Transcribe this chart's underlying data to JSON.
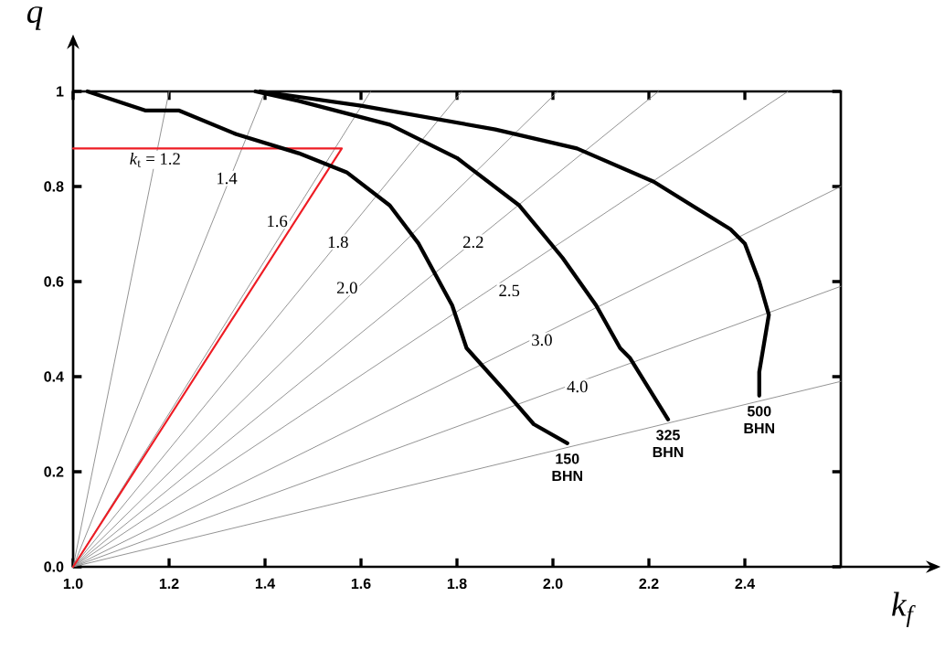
{
  "chart_data": {
    "type": "line",
    "xlabel": "k$_{f}$",
    "ylabel": "q",
    "xlim": [
      1.0,
      2.6
    ],
    "ylim": [
      0.0,
      1.0
    ],
    "xticks": [
      {
        "value": 1,
        "label": "1.0"
      },
      1.2,
      1.4,
      1.6,
      1.8,
      {
        "value": 2,
        "label": "2.0"
      },
      2.2,
      2.4
    ],
    "yticks": [
      {
        "value": 0,
        "label": "0.0"
      },
      0.2,
      0.4,
      0.6,
      0.8,
      {
        "value": 1,
        "label": "1"
      }
    ],
    "marker": "none",
    "line_style": "solid",
    "series": [
      {
        "color": "#8c8c8c",
        "x": [
          1.0,
          1.2
        ],
        "values": [
          0.0,
          1.0
        ]
      },
      {
        "color": "#8c8c8c",
        "x": [
          1.0,
          1.4
        ],
        "values": [
          0.0,
          1.0
        ]
      },
      {
        "color": "#8c8c8c",
        "x": [
          1.0,
          1.62
        ],
        "values": [
          0.0,
          1.0
        ]
      },
      {
        "color": "#8c8c8c",
        "x": [
          1.0,
          1.81
        ],
        "values": [
          0.0,
          1.0
        ]
      },
      {
        "color": "#8c8c8c",
        "x": [
          1.0,
          2.01
        ],
        "values": [
          0.0,
          1.0
        ]
      },
      {
        "color": "#8c8c8c",
        "x": [
          1.0,
          2.22
        ],
        "values": [
          0.0,
          1.0
        ]
      },
      {
        "color": "#8c8c8c",
        "x": [
          1.0,
          2.49
        ],
        "values": [
          0.0,
          1.0
        ]
      },
      {
        "color": "#8c8c8c",
        "x": [
          1.0,
          2.6
        ],
        "values": [
          0.0,
          0.8
        ]
      },
      {
        "color": "#8c8c8c",
        "x": [
          1.0,
          2.6
        ],
        "values": [
          0.0,
          0.59
        ]
      },
      {
        "color": "#8c8c8c",
        "x": [
          1.0,
          2.6
        ],
        "values": [
          0.0,
          0.39
        ]
      },
      {
        "color": "#ee1c24",
        "x": [
          1.0,
          1.56,
          1.0
        ],
        "values": [
          0.88,
          0.88,
          0.0
        ]
      },
      {
        "name": "150 BHN",
        "color": "#000000",
        "x": [
          1.03,
          1.15,
          1.22,
          1.34,
          1.47,
          1.57,
          1.66,
          1.72,
          1.79,
          1.82,
          1.9,
          1.96,
          2.03
        ],
        "values": [
          1.0,
          0.96,
          0.96,
          0.91,
          0.87,
          0.83,
          0.76,
          0.68,
          0.55,
          0.46,
          0.37,
          0.3,
          0.26
        ]
      },
      {
        "name": "325 BHN",
        "color": "#000000",
        "x": [
          1.38,
          1.47,
          1.66,
          1.8,
          1.93,
          2.02,
          2.09,
          2.14,
          2.16,
          2.24
        ],
        "values": [
          1.0,
          0.98,
          0.93,
          0.86,
          0.76,
          0.65,
          0.55,
          0.46,
          0.44,
          0.31
        ]
      },
      {
        "name": "500 BHN",
        "color": "#000000",
        "x": [
          1.39,
          1.6,
          1.88,
          2.05,
          2.21,
          2.37,
          2.4,
          2.43,
          2.45,
          2.43,
          2.43
        ],
        "values": [
          1.0,
          0.97,
          0.92,
          0.88,
          0.81,
          0.71,
          0.68,
          0.6,
          0.53,
          0.41,
          0.36
        ]
      }
    ],
    "annotations": [
      {
        "text": "*k*$_{t}$ = 1.2",
        "x": 1.171,
        "y": 0.856
      },
      {
        "text": "1.4",
        "x": 1.32,
        "y": 0.817
      },
      {
        "text": "1.6",
        "x": 1.425,
        "y": 0.727
      },
      {
        "text": "1.8",
        "x": 1.552,
        "y": 0.683
      },
      {
        "text": "2.0",
        "x": 1.571,
        "y": 0.587
      },
      {
        "text": "2.2",
        "x": 1.834,
        "y": 0.683
      },
      {
        "text": "2.5",
        "x": 1.909,
        "y": 0.581
      },
      {
        "text": "3.0",
        "x": 1.977,
        "y": 0.477
      },
      {
        "text": "4.0",
        "x": 2.051,
        "y": 0.379
      }
    ]
  }
}
